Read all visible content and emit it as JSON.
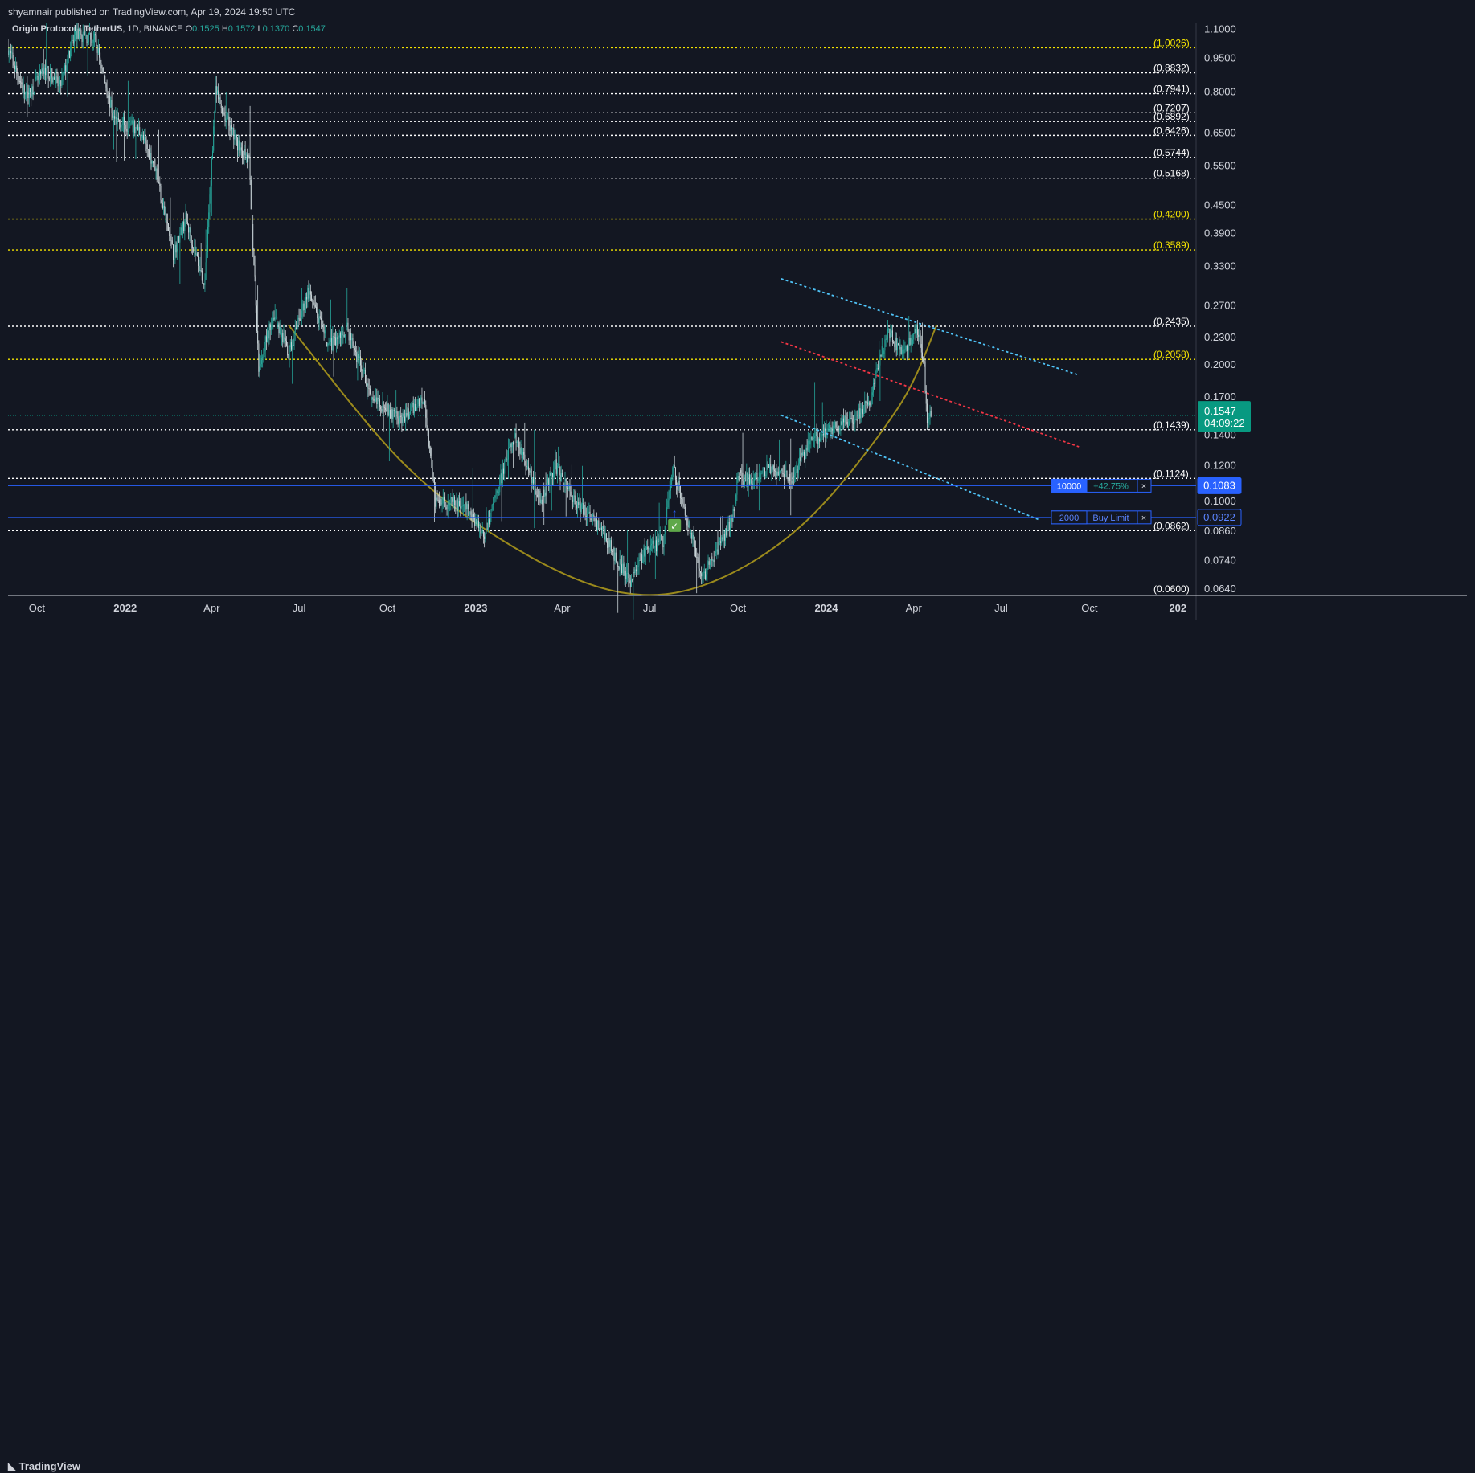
{
  "header": {
    "published": "shyamnair published on TradingView.com, Apr 19, 2024 19:50 UTC"
  },
  "footer": {
    "brand": "TradingView"
  },
  "colors": {
    "background": "#131722",
    "bull": "#26a69a",
    "levelWhite": "#ffffff",
    "levelYellow": "#f5e400",
    "channel": "#4fc3f7",
    "midline": "#f23645",
    "arc": "#9b8a1c",
    "order": "#2962ff",
    "price": "#089981"
  },
  "chart_data": {
    "type": "candlestick",
    "symbol": "Origin Protocol / TetherUS",
    "interval": "1D",
    "exchange": "BINANCE",
    "ohlc": {
      "o_label": "O",
      "o": "0.1525",
      "h_label": "H",
      "h": "0.1572",
      "l_label": "L",
      "l": "0.1370",
      "c_label": "C",
      "c": "0.1547"
    },
    "y_scale": "log",
    "ylim": [
      0.062,
      1.14
    ],
    "y_ticks": [
      "1.1000",
      "0.9500",
      "0.8000",
      "0.6500",
      "0.5500",
      "0.4500",
      "0.3900",
      "0.3300",
      "0.2700",
      "0.2300",
      "0.2000",
      "0.1700",
      "0.1400",
      "0.1200",
      "0.1000",
      "0.0860",
      "0.0740",
      "0.0640"
    ],
    "x_ticks": [
      {
        "label": "Oct",
        "t": "2021-10-01",
        "bold": false
      },
      {
        "label": "2022",
        "t": "2022-01-01",
        "bold": true
      },
      {
        "label": "Apr",
        "t": "2022-04-01",
        "bold": false
      },
      {
        "label": "Jul",
        "t": "2022-07-01",
        "bold": false
      },
      {
        "label": "Oct",
        "t": "2022-10-01",
        "bold": false
      },
      {
        "label": "2023",
        "t": "2023-01-01",
        "bold": true
      },
      {
        "label": "Apr",
        "t": "2023-04-01",
        "bold": false
      },
      {
        "label": "Jul",
        "t": "2023-07-01",
        "bold": false
      },
      {
        "label": "Oct",
        "t": "2023-10-01",
        "bold": false
      },
      {
        "label": "2024",
        "t": "2024-01-01",
        "bold": true
      },
      {
        "label": "Apr",
        "t": "2024-04-01",
        "bold": false
      },
      {
        "label": "Jul",
        "t": "2024-07-01",
        "bold": false
      },
      {
        "label": "Oct",
        "t": "2024-10-01",
        "bold": false
      },
      {
        "label": "202",
        "t": "2025-01-01",
        "bold": true
      }
    ],
    "price_path": [
      [
        "2021-09-01",
        1.0
      ],
      [
        "2021-09-20",
        0.78
      ],
      [
        "2021-10-10",
        0.9
      ],
      [
        "2021-10-25",
        0.82
      ],
      [
        "2021-11-10",
        1.08
      ],
      [
        "2021-12-01",
        1.04
      ],
      [
        "2021-12-20",
        0.7
      ],
      [
        "2022-01-15",
        0.66
      ],
      [
        "2022-02-01",
        0.55
      ],
      [
        "2022-02-20",
        0.35
      ],
      [
        "2022-03-05",
        0.42
      ],
      [
        "2022-03-25",
        0.3
      ],
      [
        "2022-04-05",
        0.8
      ],
      [
        "2022-04-25",
        0.63
      ],
      [
        "2022-05-10",
        0.56
      ],
      [
        "2022-05-20",
        0.2
      ],
      [
        "2022-06-05",
        0.26
      ],
      [
        "2022-06-20",
        0.21
      ],
      [
        "2022-07-10",
        0.29
      ],
      [
        "2022-08-01",
        0.22
      ],
      [
        "2022-08-20",
        0.24
      ],
      [
        "2022-09-15",
        0.17
      ],
      [
        "2022-10-15",
        0.15
      ],
      [
        "2022-11-08",
        0.17
      ],
      [
        "2022-11-20",
        0.1
      ],
      [
        "2022-12-20",
        0.098
      ],
      [
        "2023-01-10",
        0.085
      ],
      [
        "2023-02-10",
        0.14
      ],
      [
        "2023-03-10",
        0.1
      ],
      [
        "2023-03-25",
        0.12
      ],
      [
        "2023-04-15",
        0.1
      ],
      [
        "2023-05-10",
        0.088
      ],
      [
        "2023-06-10",
        0.066
      ],
      [
        "2023-06-25",
        0.077
      ],
      [
        "2023-07-15",
        0.082
      ],
      [
        "2023-07-25",
        0.12
      ],
      [
        "2023-08-15",
        0.082
      ],
      [
        "2023-08-25",
        0.068
      ],
      [
        "2023-09-10",
        0.078
      ],
      [
        "2023-09-25",
        0.091
      ],
      [
        "2023-10-01",
        0.115
      ],
      [
        "2023-10-15",
        0.11
      ],
      [
        "2023-11-05",
        0.12
      ],
      [
        "2023-11-25",
        0.112
      ],
      [
        "2023-12-15",
        0.135
      ],
      [
        "2024-01-05",
        0.145
      ],
      [
        "2024-01-25",
        0.15
      ],
      [
        "2024-02-15",
        0.165
      ],
      [
        "2024-03-05",
        0.24
      ],
      [
        "2024-03-20",
        0.21
      ],
      [
        "2024-04-05",
        0.24
      ],
      [
        "2024-04-12",
        0.2
      ],
      [
        "2024-04-15",
        0.15
      ],
      [
        "2024-04-19",
        0.155
      ]
    ],
    "levels": [
      {
        "label": "(1.0026)",
        "value": 1.0026,
        "color": "yellow"
      },
      {
        "label": "(0.8832)",
        "value": 0.8832,
        "color": "white"
      },
      {
        "label": "(0.7941)",
        "value": 0.7941,
        "color": "white"
      },
      {
        "label": "(0.7207)",
        "value": 0.7207,
        "color": "white"
      },
      {
        "label": "(0.6892)",
        "value": 0.6892,
        "color": "white"
      },
      {
        "label": "(0.6426)",
        "value": 0.6426,
        "color": "white"
      },
      {
        "label": "(0.5744)",
        "value": 0.5744,
        "color": "white"
      },
      {
        "label": "(0.5168)",
        "value": 0.5168,
        "color": "white"
      },
      {
        "label": "(0.4200)",
        "value": 0.42,
        "color": "yellow"
      },
      {
        "label": "(0.3589)",
        "value": 0.3589,
        "color": "yellow"
      },
      {
        "label": "(0.2435)",
        "value": 0.2435,
        "color": "white"
      },
      {
        "label": "(0.2058)",
        "value": 0.2058,
        "color": "yellow"
      },
      {
        "label": "(0.1439)",
        "value": 0.1439,
        "color": "white"
      },
      {
        "label": "(0.1124)",
        "value": 0.1124,
        "color": "white"
      },
      {
        "label": "(0.0862)",
        "value": 0.0862,
        "color": "white"
      },
      {
        "label": "(0.0600)",
        "value": 0.06,
        "color": "white"
      }
    ],
    "channel": {
      "upper": [
        [
          "2023-11-15",
          0.31
        ],
        [
          "2024-09-20",
          0.19
        ]
      ],
      "middle": [
        [
          "2023-11-15",
          0.225
        ],
        [
          "2024-09-20",
          0.132
        ]
      ],
      "lower": [
        [
          "2023-11-15",
          0.155
        ],
        [
          "2024-08-10",
          0.091
        ]
      ]
    },
    "arc": {
      "points": [
        [
          "2022-06-20",
          0.245
        ],
        [
          "2022-10-20",
          0.12
        ],
        [
          "2023-02-15",
          0.078
        ],
        [
          "2023-06-01",
          0.063
        ],
        [
          "2023-09-01",
          0.066
        ],
        [
          "2023-12-10",
          0.09
        ],
        [
          "2024-03-15",
          0.16
        ],
        [
          "2024-04-25",
          0.245
        ]
      ]
    },
    "last_price": {
      "value": 0.1547,
      "label": "0.1547",
      "countdown": "04:09:22"
    },
    "orders": [
      {
        "price": 0.1083,
        "price_label": "0.1083",
        "qty": "10000",
        "info": "+42.75%",
        "close": "×"
      },
      {
        "price": 0.0922,
        "price_label": "0.0922",
        "qty": "2000",
        "info": "Buy Limit",
        "close": "×"
      }
    ],
    "fill_marker": {
      "t": "2023-07-27",
      "value": 0.0885,
      "symbol": "✓",
      "arrow": "↑"
    }
  }
}
